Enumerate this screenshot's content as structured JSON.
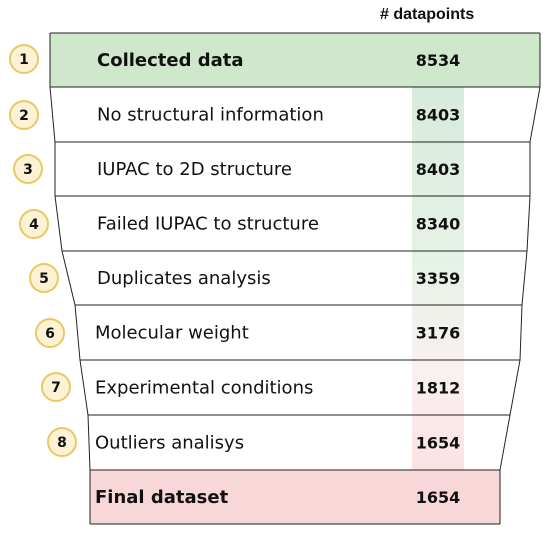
{
  "column_header": "# datapoints",
  "steps": [
    {
      "number": "1",
      "label": "Collected data",
      "count": "8534",
      "emphasis": "top"
    },
    {
      "number": "2",
      "label": "No structural information",
      "count": "8403",
      "emphasis": "none"
    },
    {
      "number": "3",
      "label": "IUPAC to 2D structure",
      "count": "8403",
      "emphasis": "none"
    },
    {
      "number": "4",
      "label": "Failed IUPAC to structure",
      "count": "8340",
      "emphasis": "none"
    },
    {
      "number": "5",
      "label": "Duplicates analysis",
      "count": "3359",
      "emphasis": "none"
    },
    {
      "number": "6",
      "label": "Molecular weight",
      "count": "3176",
      "emphasis": "none"
    },
    {
      "number": "7",
      "label": "Experimental conditions",
      "count": "1812",
      "emphasis": "none"
    },
    {
      "number": "8",
      "label": "Outliers analisys",
      "count": "1654",
      "emphasis": "none"
    },
    {
      "number": "",
      "label": "Final dataset",
      "count": "1654",
      "emphasis": "bottom"
    }
  ],
  "colors": {
    "top_fill": "#cfe8cc",
    "bottom_fill": "#f7d7d7",
    "badge_fill": "#fdf2d3",
    "badge_stroke": "#e9c867",
    "count_band_top": "#d7ebdc",
    "count_band_bottom": "#fbe2e2",
    "outline": "#222222"
  }
}
